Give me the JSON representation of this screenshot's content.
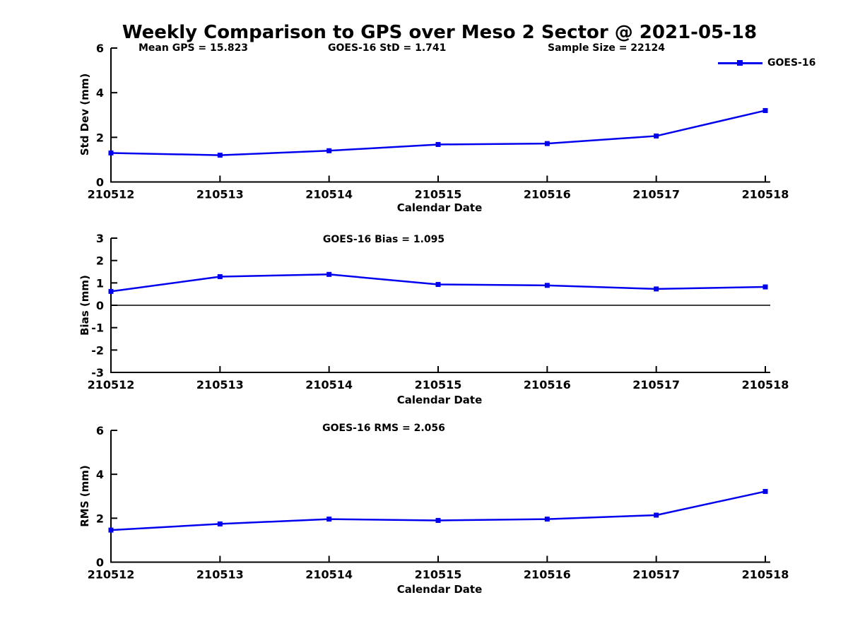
{
  "page_title": "Weekly Comparison to GPS over Meso 2 Sector @ 2021-05-18",
  "colors": {
    "series": "#0000EE",
    "axis": "#000000",
    "background": "#ffffff"
  },
  "legend": {
    "label": "GOES-16",
    "position": "top-right",
    "marker": "square"
  },
  "chart_data": [
    {
      "type": "line",
      "name": "std-dev",
      "title": "",
      "annotations": [
        "Mean GPS = 15.823",
        "GOES-16 StD = 1.741",
        "Sample Size = 22124"
      ],
      "xlabel": "Calendar Date",
      "ylabel": "Std Dev (mm)",
      "ylim": [
        0,
        6
      ],
      "yticks": [
        0,
        2,
        4,
        6
      ],
      "grid": false,
      "categories": [
        "210512",
        "210513",
        "210514",
        "210515",
        "210516",
        "210517",
        "210518"
      ],
      "series": [
        {
          "name": "GOES-16",
          "values": [
            1.3,
            1.2,
            1.4,
            1.68,
            1.72,
            2.06,
            3.2
          ]
        }
      ]
    },
    {
      "type": "line",
      "name": "bias",
      "title": "GOES-16 Bias  = 1.095",
      "xlabel": "Calendar Date",
      "ylabel": "Bias (mm)",
      "ylim": [
        -3,
        3
      ],
      "yticks": [
        3,
        2,
        1,
        0,
        -1,
        -2,
        -3
      ],
      "zero_line": true,
      "grid": false,
      "categories": [
        "210512",
        "210513",
        "210514",
        "210515",
        "210516",
        "210517",
        "210518"
      ],
      "series": [
        {
          "name": "GOES-16",
          "values": [
            0.62,
            1.28,
            1.38,
            0.93,
            0.89,
            0.73,
            0.82
          ]
        }
      ]
    },
    {
      "type": "line",
      "name": "rms",
      "title": "GOES-16 RMS = 2.056",
      "xlabel": "Calendar Date",
      "ylabel": "RMS (mm)",
      "ylim": [
        0,
        6
      ],
      "yticks": [
        0,
        2,
        4,
        6
      ],
      "grid": false,
      "categories": [
        "210512",
        "210513",
        "210514",
        "210515",
        "210516",
        "210517",
        "210518"
      ],
      "series": [
        {
          "name": "GOES-16",
          "values": [
            1.46,
            1.74,
            1.96,
            1.9,
            1.96,
            2.14,
            3.22
          ]
        }
      ]
    }
  ]
}
